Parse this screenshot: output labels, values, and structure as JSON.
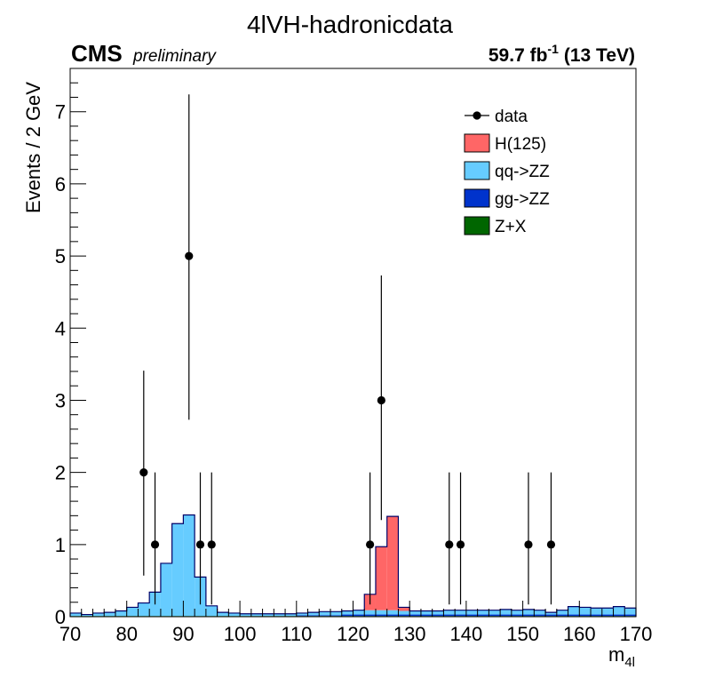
{
  "chart_data": {
    "type": "bar",
    "title": "4lVH-hadronicdata",
    "experiment": "CMS",
    "experiment_tag": "preliminary",
    "lumi_value": "59.7 fb",
    "lumi_exponent": "-1",
    "lumi_energy": "(13 TeV)",
    "xlabel_main": "m",
    "xlabel_sub": "4l",
    "ylabel": "Events / 2 GeV",
    "xlim": [
      70,
      170
    ],
    "ylim": [
      0,
      7.6
    ],
    "x_ticks": [
      "70",
      "80",
      "90",
      "100",
      "110",
      "120",
      "130",
      "140",
      "150",
      "160",
      "170"
    ],
    "y_ticks": [
      "0",
      "1",
      "2",
      "3",
      "4",
      "5",
      "6",
      "7"
    ],
    "bin_width": 2,
    "bin_edges_start": 70,
    "stack": [
      {
        "name": "Z+X",
        "color": "#006600",
        "values": [
          0.01,
          0.01,
          0.01,
          0.01,
          0.01,
          0.01,
          0.01,
          0.01,
          0.01,
          0.01,
          0.01,
          0.01,
          0.01,
          0.01,
          0.01,
          0.01,
          0.01,
          0.01,
          0.01,
          0.01,
          0.01,
          0.01,
          0.01,
          0.01,
          0.01,
          0.01,
          0.01,
          0.01,
          0.01,
          0.01,
          0.01,
          0.01,
          0.01,
          0.01,
          0.01,
          0.01,
          0.01,
          0.01,
          0.01,
          0.01,
          0.01,
          0.01,
          0.01,
          0.01,
          0.01,
          0.01,
          0.01,
          0.01,
          0.01,
          0.01
        ]
      },
      {
        "name": "gg->ZZ",
        "color": "#0033cc",
        "values": [
          0,
          0,
          0,
          0,
          0,
          0,
          0,
          0,
          0,
          0,
          0,
          0,
          0,
          0,
          0,
          0,
          0,
          0,
          0,
          0,
          0.01,
          0.01,
          0.01,
          0.01,
          0.02,
          0.02,
          0.02,
          0.02,
          0.02,
          0.02,
          0.02,
          0.02,
          0.02,
          0.02,
          0.02,
          0.02,
          0.02,
          0.02,
          0.02,
          0.02,
          0.02,
          0.02,
          0.02,
          0.02,
          0.02,
          0.02,
          0.02,
          0.02,
          0.02,
          0.02
        ]
      },
      {
        "name": "qq->ZZ",
        "color": "#66ccff",
        "values": [
          0.04,
          0.02,
          0.04,
          0.05,
          0.07,
          0.12,
          0.18,
          0.33,
          0.73,
          1.28,
          1.4,
          0.54,
          0.14,
          0.05,
          0.04,
          0.03,
          0.03,
          0.03,
          0.03,
          0.03,
          0.03,
          0.04,
          0.05,
          0.05,
          0.05,
          0.06,
          0.06,
          0.06,
          0.06,
          0.05,
          0.05,
          0.05,
          0.05,
          0.06,
          0.06,
          0.06,
          0.06,
          0.06,
          0.07,
          0.06,
          0.07,
          0.06,
          0.03,
          0.06,
          0.11,
          0.1,
          0.09,
          0.09,
          0.11,
          0.09
        ]
      },
      {
        "name": "H(125)",
        "color": "#ff6666",
        "values": [
          0,
          0,
          0,
          0,
          0,
          0,
          0,
          0,
          0,
          0,
          0,
          0,
          0,
          0,
          0,
          0,
          0,
          0,
          0,
          0,
          0,
          0,
          0,
          0,
          0,
          0,
          0.22,
          0.88,
          1.3,
          0.05,
          0,
          0,
          0,
          0,
          0,
          0,
          0,
          0,
          0,
          0,
          0,
          0,
          0,
          0,
          0,
          0,
          0,
          0,
          0,
          0
        ]
      }
    ],
    "data_points": [
      {
        "x": 83,
        "y": 2,
        "err_low": 1.43,
        "err_high": 1.41
      },
      {
        "x": 85,
        "y": 1,
        "err_low": 0.83,
        "err_high": 1.0
      },
      {
        "x": 91,
        "y": 5,
        "err_low": 2.27,
        "err_high": 2.24
      },
      {
        "x": 93,
        "y": 1,
        "err_low": 0.83,
        "err_high": 1.0
      },
      {
        "x": 95,
        "y": 1,
        "err_low": 0.83,
        "err_high": 1.0
      },
      {
        "x": 123,
        "y": 1,
        "err_low": 0.83,
        "err_high": 1.0
      },
      {
        "x": 125,
        "y": 3,
        "err_low": 1.66,
        "err_high": 1.73
      },
      {
        "x": 137,
        "y": 1,
        "err_low": 0.83,
        "err_high": 1.0
      },
      {
        "x": 139,
        "y": 1,
        "err_low": 0.83,
        "err_high": 1.0
      },
      {
        "x": 151,
        "y": 1,
        "err_low": 0.83,
        "err_high": 1.0
      },
      {
        "x": 155,
        "y": 1,
        "err_low": 0.83,
        "err_high": 1.0
      }
    ],
    "legend": {
      "placement": "top-right",
      "entries": [
        {
          "label": "data",
          "style": "marker",
          "color": "#000000"
        },
        {
          "label": "H(125)",
          "style": "box",
          "color": "#ff6666"
        },
        {
          "label": "qq->ZZ",
          "style": "box",
          "color": "#66ccff"
        },
        {
          "label": "gg->ZZ",
          "style": "box",
          "color": "#0033cc"
        },
        {
          "label": "Z+X",
          "style": "box",
          "color": "#006600"
        }
      ]
    },
    "outline_color": "#000066"
  }
}
